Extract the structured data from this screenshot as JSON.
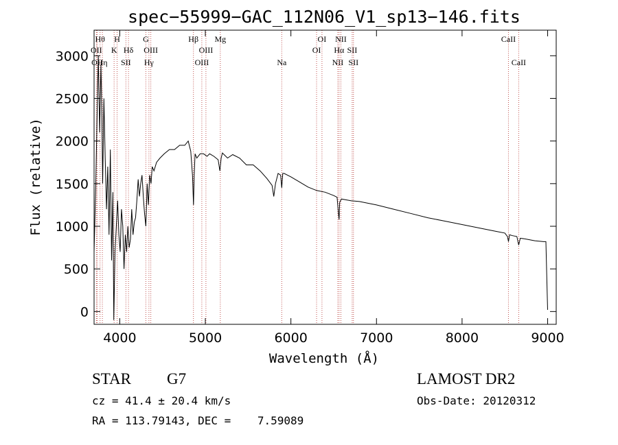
{
  "chart_data": {
    "type": "line",
    "title": "spec−55999−GAC_112N06_V1_sp13−146.fits",
    "xlabel": "Wavelength (Å)",
    "ylabel": "Flux (relative)",
    "xlim": [
      3700,
      9100
    ],
    "ylim": [
      -150,
      3300
    ],
    "xticks": [
      4000,
      5000,
      6000,
      7000,
      8000,
      9000
    ],
    "xtick_labels": [
      "4000",
      "5000",
      "6000",
      "7000",
      "8000",
      "9000"
    ],
    "yticks": [
      0,
      500,
      1000,
      1500,
      2000,
      2500,
      3000
    ],
    "ytick_labels": [
      "0",
      "500",
      "1000",
      "1500",
      "2000",
      "2500",
      "3000"
    ],
    "grid": false,
    "series": [
      {
        "x": [
          3700,
          3720,
          3735,
          3750,
          3765,
          3780,
          3790,
          3800,
          3815,
          3830,
          3845,
          3860,
          3875,
          3890,
          3905,
          3920,
          3930,
          3945,
          3960,
          3975,
          3990,
          4005,
          4020,
          4035,
          4050,
          4065,
          4080,
          4095,
          4110,
          4125,
          4140,
          4155,
          4170,
          4185,
          4200,
          4215,
          4230,
          4245,
          4260,
          4275,
          4290,
          4305,
          4320,
          4335,
          4350,
          4365,
          4380,
          4400,
          4430,
          4470,
          4520,
          4580,
          4640,
          4700,
          4760,
          4800,
          4830,
          4850,
          4862,
          4870,
          4880,
          4900,
          4940,
          4980,
          5020,
          5050,
          5100,
          5150,
          5170,
          5185,
          5200,
          5260,
          5320,
          5400,
          5480,
          5560,
          5640,
          5720,
          5780,
          5800,
          5820,
          5850,
          5880,
          5893,
          5905,
          5920,
          6000,
          6100,
          6200,
          6300,
          6400,
          6500,
          6540,
          6556,
          6563,
          6570,
          6590,
          6700,
          6800,
          6900,
          7000,
          7200,
          7400,
          7600,
          7800,
          8000,
          8200,
          8400,
          8500,
          8530,
          8542,
          8555,
          8590,
          8640,
          8662,
          8680,
          8750,
          8850,
          8950,
          8980,
          8990,
          9000
        ],
        "y": [
          700,
          1500,
          2300,
          3000,
          2100,
          2900,
          2400,
          1500,
          2500,
          1800,
          1200,
          1700,
          900,
          1900,
          600,
          1400,
          -100,
          700,
          1000,
          1300,
          900,
          700,
          1200,
          1000,
          500,
          900,
          700,
          1000,
          750,
          850,
          1200,
          900,
          1050,
          1100,
          1300,
          1550,
          1350,
          1500,
          1600,
          1350,
          1150,
          1000,
          1500,
          1250,
          1600,
          1500,
          1700,
          1650,
          1750,
          1800,
          1850,
          1900,
          1900,
          1950,
          1950,
          2000,
          1880,
          1600,
          1250,
          1600,
          1850,
          1800,
          1850,
          1850,
          1820,
          1850,
          1820,
          1780,
          1650,
          1800,
          1860,
          1800,
          1840,
          1800,
          1720,
          1720,
          1650,
          1560,
          1480,
          1350,
          1500,
          1620,
          1600,
          1450,
          1620,
          1620,
          1580,
          1520,
          1460,
          1420,
          1400,
          1360,
          1340,
          1150,
          1080,
          1280,
          1320,
          1300,
          1290,
          1270,
          1250,
          1200,
          1150,
          1100,
          1060,
          1020,
          980,
          940,
          920,
          880,
          820,
          900,
          890,
          880,
          780,
          860,
          850,
          830,
          820,
          820,
          400,
          20
        ]
      }
    ],
    "lines": [
      {
        "lambda": 3727,
        "label": "OII",
        "row": 2
      },
      {
        "lambda": 3736,
        "label": "OII",
        "row": 3
      },
      {
        "lambda": 3770,
        "label": "Hθ",
        "row": 1
      },
      {
        "lambda": 3797,
        "label": "Hη",
        "row": 3
      },
      {
        "lambda": 3934,
        "label": "K",
        "row": 2
      },
      {
        "lambda": 3969,
        "label": "H",
        "row": 1
      },
      {
        "lambda": 4072,
        "label": "SII",
        "row": 3
      },
      {
        "lambda": 4102,
        "label": "Hδ",
        "row": 2
      },
      {
        "lambda": 4305,
        "label": "G",
        "row": 1
      },
      {
        "lambda": 4341,
        "label": "Hγ",
        "row": 3
      },
      {
        "lambda": 4363,
        "label": "OIII",
        "row": 2
      },
      {
        "lambda": 4861,
        "label": "Hβ",
        "row": 1
      },
      {
        "lambda": 4959,
        "label": "OIII",
        "row": 3
      },
      {
        "lambda": 5007,
        "label": "OIII",
        "row": 2
      },
      {
        "lambda": 5175,
        "label": "Mg",
        "row": 1
      },
      {
        "lambda": 5893,
        "label": "Na",
        "row": 3
      },
      {
        "lambda": 6300,
        "label": "OI",
        "row": 2
      },
      {
        "lambda": 6363,
        "label": "OI",
        "row": 1
      },
      {
        "lambda": 6548,
        "label": "NII",
        "row": 3
      },
      {
        "lambda": 6563,
        "label": "Hα",
        "row": 2
      },
      {
        "lambda": 6584,
        "label": "NII",
        "row": 1
      },
      {
        "lambda": 6716,
        "label": "SII",
        "row": 2
      },
      {
        "lambda": 6731,
        "label": "SII",
        "row": 3
      },
      {
        "lambda": 8542,
        "label": "CaII",
        "row": 1
      },
      {
        "lambda": 8662,
        "label": "CaII",
        "row": 3
      }
    ],
    "line_color": "#c0504d"
  },
  "info": {
    "class": "STAR",
    "subclass": "G7",
    "survey": "LAMOST DR2",
    "cz": "cz = 41.4 ± 20.4 km/s",
    "obs_date": "Obs-Date: 20120312",
    "radec": "RA = 113.79143, DEC =    7.59089"
  }
}
